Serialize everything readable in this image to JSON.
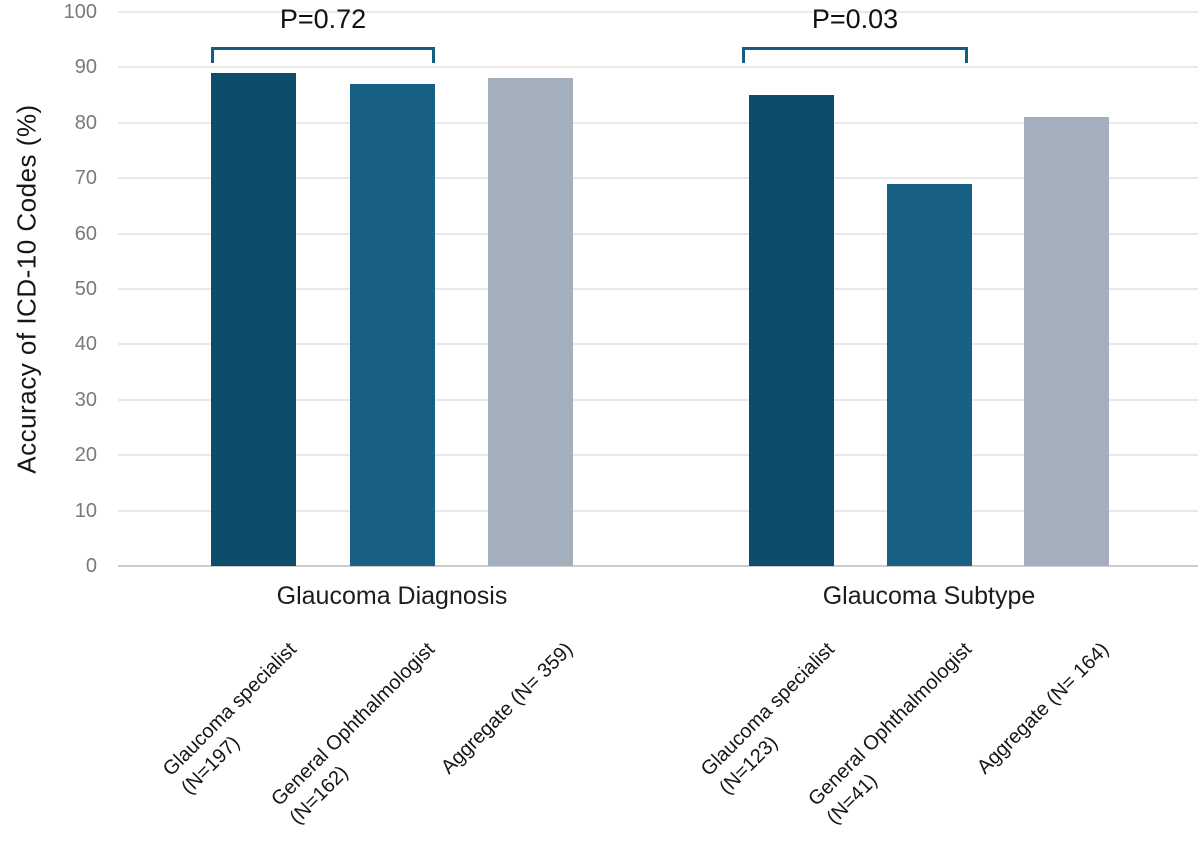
{
  "chart_data": {
    "type": "bar",
    "title": "",
    "ylabel": "Accuracy of ICD-10 Codes (%)",
    "xlabel": "",
    "ylim": [
      0,
      100
    ],
    "yticks": [
      0,
      10,
      20,
      30,
      40,
      50,
      60,
      70,
      80,
      90,
      100
    ],
    "grid": "horizontal",
    "legend": "none",
    "colors": {
      "glaucoma_specialist": "#0D4D6B",
      "general_ophthalmologist": "#176083",
      "aggregate": "#A3AFBC",
      "bracket": "#155E80",
      "gridline": "#E9E9E9"
    },
    "groups": [
      {
        "label": "Glaucoma Diagnosis",
        "comparison": {
          "text": "P=0.72",
          "between": [
            0,
            1
          ]
        },
        "bars": [
          {
            "name": "Glaucoma specialist",
            "n": "(N=197)",
            "value": 89,
            "color": "#0D4D6B"
          },
          {
            "name": "General Ophthalmologist",
            "n": "(N=162)",
            "value": 87,
            "color": "#176083"
          },
          {
            "name": "Aggregate (N= 359)",
            "n": "",
            "value": 88,
            "color": "#A3AFBC"
          }
        ]
      },
      {
        "label": "Glaucoma Subtype",
        "comparison": {
          "text": "P=0.03",
          "between": [
            0,
            1
          ]
        },
        "bars": [
          {
            "name": "Glaucoma specialist",
            "n": "(N=123)",
            "value": 85,
            "color": "#0D4D6B"
          },
          {
            "name": "General Ophthalmologist",
            "n": "(N=41)",
            "value": 69,
            "color": "#176083"
          },
          {
            "name": "Aggregate (N= 164)",
            "n": "",
            "value": 81,
            "color": "#A3AFBC"
          }
        ]
      }
    ]
  }
}
